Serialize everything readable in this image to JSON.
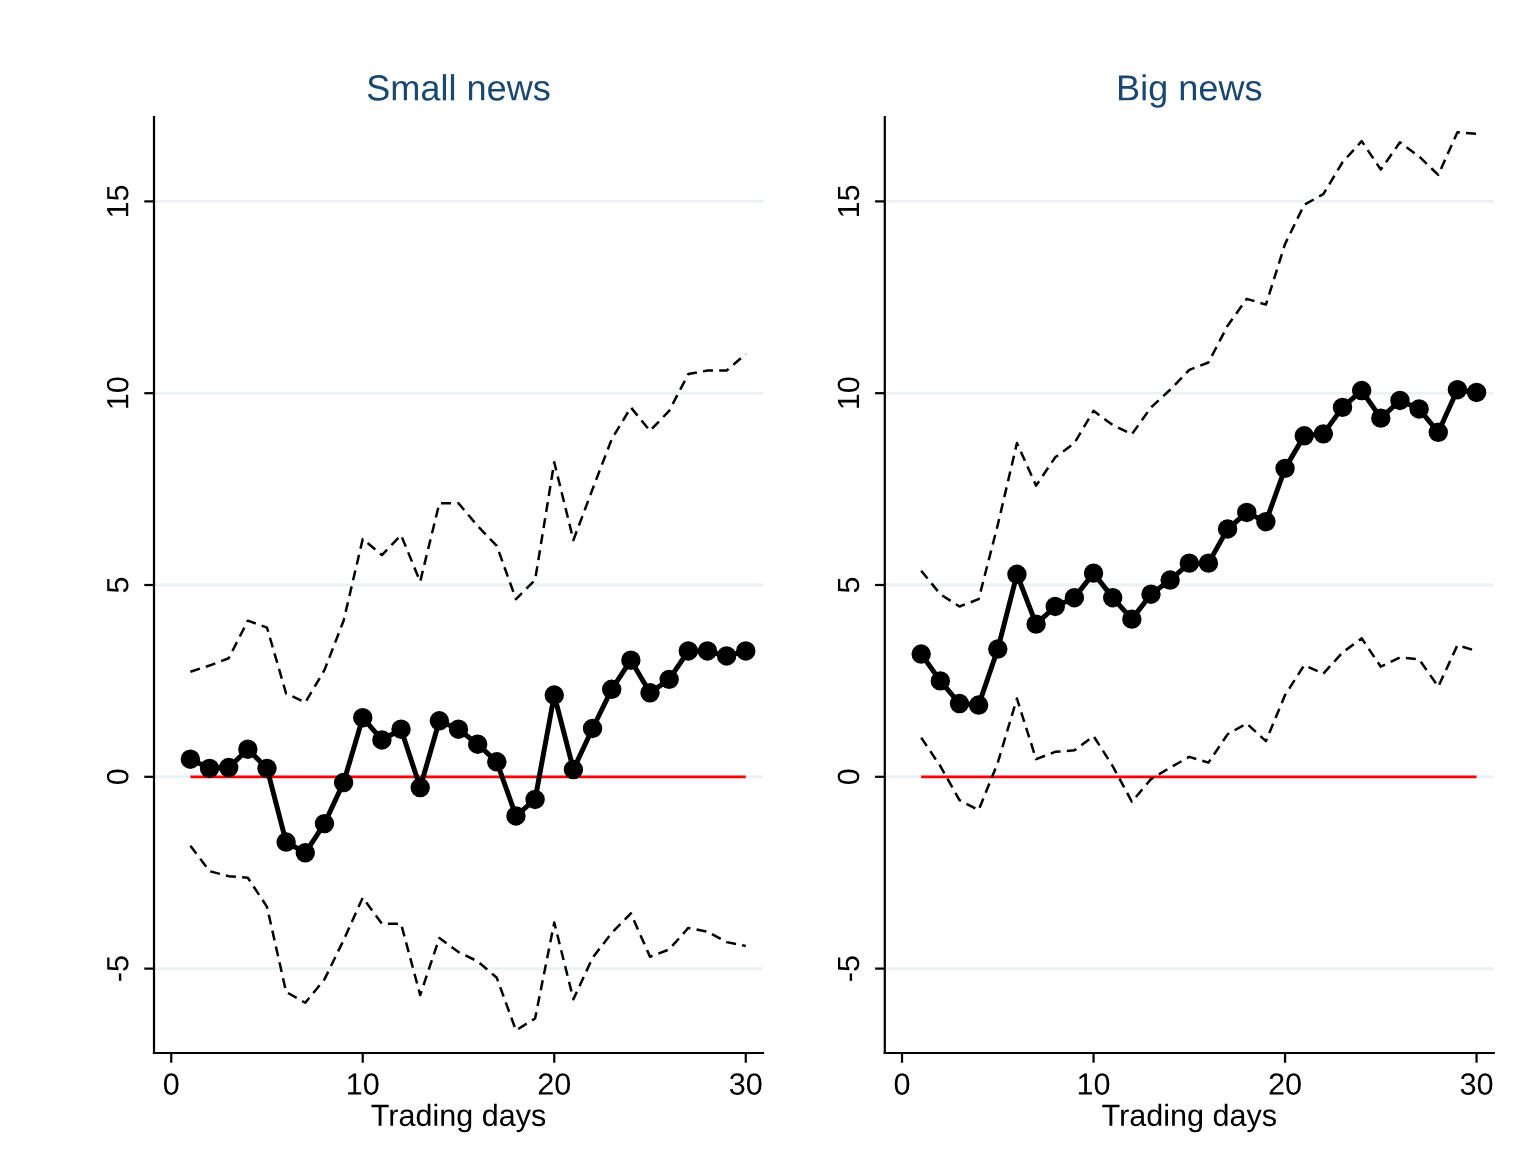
{
  "chart_data": [
    {
      "type": "line",
      "title": "Small news",
      "xlabel": "Trading days",
      "x": [
        1,
        2,
        3,
        4,
        5,
        6,
        7,
        8,
        9,
        10,
        11,
        12,
        13,
        14,
        15,
        16,
        17,
        18,
        19,
        20,
        21,
        22,
        23,
        24,
        25,
        26,
        27,
        28,
        29,
        30
      ],
      "xlim": [
        -0.9,
        30.9
      ],
      "xticks": [
        0,
        10,
        20,
        30
      ],
      "ylim": [
        -7.2,
        17.2
      ],
      "yticks": [
        -5,
        0,
        5,
        10,
        15
      ],
      "grid": "y",
      "legend": false,
      "ref_lines": [
        {
          "axis": "y",
          "value": 0,
          "color": "#ff0000",
          "line_style": "solid"
        }
      ],
      "series": [
        {
          "color": "#000000",
          "marker": "circle",
          "line_style": "solid",
          "values": [
            0.46,
            0.22,
            0.24,
            0.72,
            0.22,
            -1.7,
            -1.98,
            -1.22,
            -0.15,
            1.54,
            0.96,
            1.24,
            -0.28,
            1.46,
            1.24,
            0.85,
            0.39,
            -1.02,
            -0.59,
            2.13,
            0.19,
            1.26,
            2.28,
            3.04,
            2.19,
            2.54,
            3.28,
            3.28,
            3.15,
            3.28
          ]
        },
        {
          "color": "#000000",
          "marker": "none",
          "line_style": "dashed",
          "values": [
            2.74,
            2.9,
            3.09,
            4.07,
            3.89,
            2.17,
            1.94,
            2.78,
            4.07,
            6.2,
            5.78,
            6.3,
            5.09,
            7.13,
            7.13,
            6.54,
            6.02,
            4.63,
            5.13,
            8.2,
            6.17,
            7.5,
            8.8,
            9.63,
            9.02,
            9.54,
            10.5,
            10.59,
            10.59,
            11.02
          ]
        },
        {
          "color": "#000000",
          "marker": "none",
          "line_style": "dashed",
          "values": [
            -1.8,
            -2.46,
            -2.59,
            -2.63,
            -3.39,
            -5.61,
            -5.89,
            -5.28,
            -4.26,
            -3.15,
            -3.83,
            -3.83,
            -5.69,
            -4.2,
            -4.57,
            -4.81,
            -5.24,
            -6.61,
            -6.3,
            -3.8,
            -5.8,
            -4.72,
            -4.07,
            -3.56,
            -4.69,
            -4.5,
            -3.94,
            -4.04,
            -4.31,
            -4.41
          ]
        }
      ]
    },
    {
      "type": "line",
      "title": "Big news",
      "xlabel": "Trading days",
      "x": [
        1,
        2,
        3,
        4,
        5,
        6,
        7,
        8,
        9,
        10,
        11,
        12,
        13,
        14,
        15,
        16,
        17,
        18,
        19,
        20,
        21,
        22,
        23,
        24,
        25,
        26,
        27,
        28,
        29,
        30
      ],
      "xlim": [
        -0.9,
        30.9
      ],
      "xticks": [
        0,
        10,
        20,
        30
      ],
      "ylim": [
        -7.2,
        17.2
      ],
      "yticks": [
        -5,
        0,
        5,
        10,
        15
      ],
      "grid": "y",
      "legend": false,
      "ref_lines": [
        {
          "axis": "y",
          "value": 0,
          "color": "#ff0000",
          "line_style": "solid"
        }
      ],
      "series": [
        {
          "color": "#000000",
          "marker": "circle",
          "line_style": "solid",
          "values": [
            3.2,
            2.5,
            1.91,
            1.87,
            3.33,
            5.28,
            3.98,
            4.44,
            4.67,
            5.31,
            4.67,
            4.11,
            4.76,
            5.13,
            5.57,
            5.57,
            6.46,
            6.89,
            6.65,
            8.04,
            8.89,
            8.94,
            9.63,
            10.07,
            9.35,
            9.81,
            9.59,
            8.98,
            10.09,
            10.02
          ]
        },
        {
          "color": "#000000",
          "marker": "none",
          "line_style": "dashed",
          "values": [
            5.37,
            4.76,
            4.44,
            4.63,
            6.57,
            8.7,
            7.59,
            8.33,
            8.7,
            9.54,
            9.17,
            8.93,
            9.63,
            10.09,
            10.61,
            10.8,
            11.76,
            12.46,
            12.31,
            13.89,
            14.91,
            15.19,
            16.02,
            16.57,
            15.83,
            16.54,
            16.17,
            15.69,
            16.8,
            16.76
          ]
        },
        {
          "color": "#000000",
          "marker": "none",
          "line_style": "dashed",
          "values": [
            1.02,
            0.28,
            -0.61,
            -0.87,
            0.37,
            2.04,
            0.46,
            0.65,
            0.69,
            1.06,
            0.28,
            -0.65,
            -0.06,
            0.24,
            0.52,
            0.37,
            1.11,
            1.39,
            0.93,
            2.13,
            2.91,
            2.69,
            3.24,
            3.61,
            2.87,
            3.11,
            3.06,
            2.35,
            3.43,
            3.28
          ]
        }
      ]
    }
  ]
}
